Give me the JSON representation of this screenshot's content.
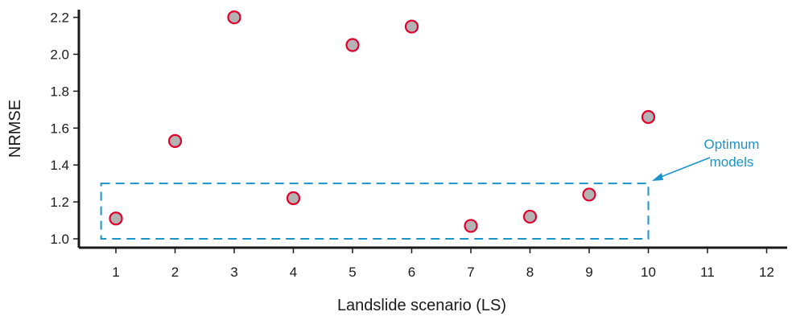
{
  "chart_data": {
    "type": "scatter",
    "xlabel": "Landslide scenario (LS)",
    "ylabel": "NRMSE",
    "xlim": [
      0.5,
      12.2
    ],
    "ylim": [
      0.96,
      2.24
    ],
    "xticks": [
      1,
      2,
      3,
      4,
      5,
      6,
      7,
      8,
      9,
      10,
      11,
      12
    ],
    "yticks": [
      "1.0",
      "1.2",
      "1.4",
      "1.6",
      "1.8",
      "2.0",
      "2.2"
    ],
    "grid": false,
    "points": [
      {
        "x": 1,
        "y": 1.11
      },
      {
        "x": 2,
        "y": 1.53
      },
      {
        "x": 3,
        "y": 2.2
      },
      {
        "x": 4,
        "y": 1.22
      },
      {
        "x": 5,
        "y": 2.05
      },
      {
        "x": 6,
        "y": 2.15
      },
      {
        "x": 7,
        "y": 1.07
      },
      {
        "x": 8,
        "y": 1.12
      },
      {
        "x": 9,
        "y": 1.24
      },
      {
        "x": 10,
        "y": 1.66
      }
    ],
    "marker_fill": "#b3b3b3",
    "marker_edge": "#e0002b",
    "annotation": {
      "lines": [
        "Optimum",
        "models"
      ],
      "color": "#1a94c9",
      "box_x": [
        0.75,
        10.0
      ],
      "box_y": [
        1.0,
        1.3
      ]
    }
  }
}
